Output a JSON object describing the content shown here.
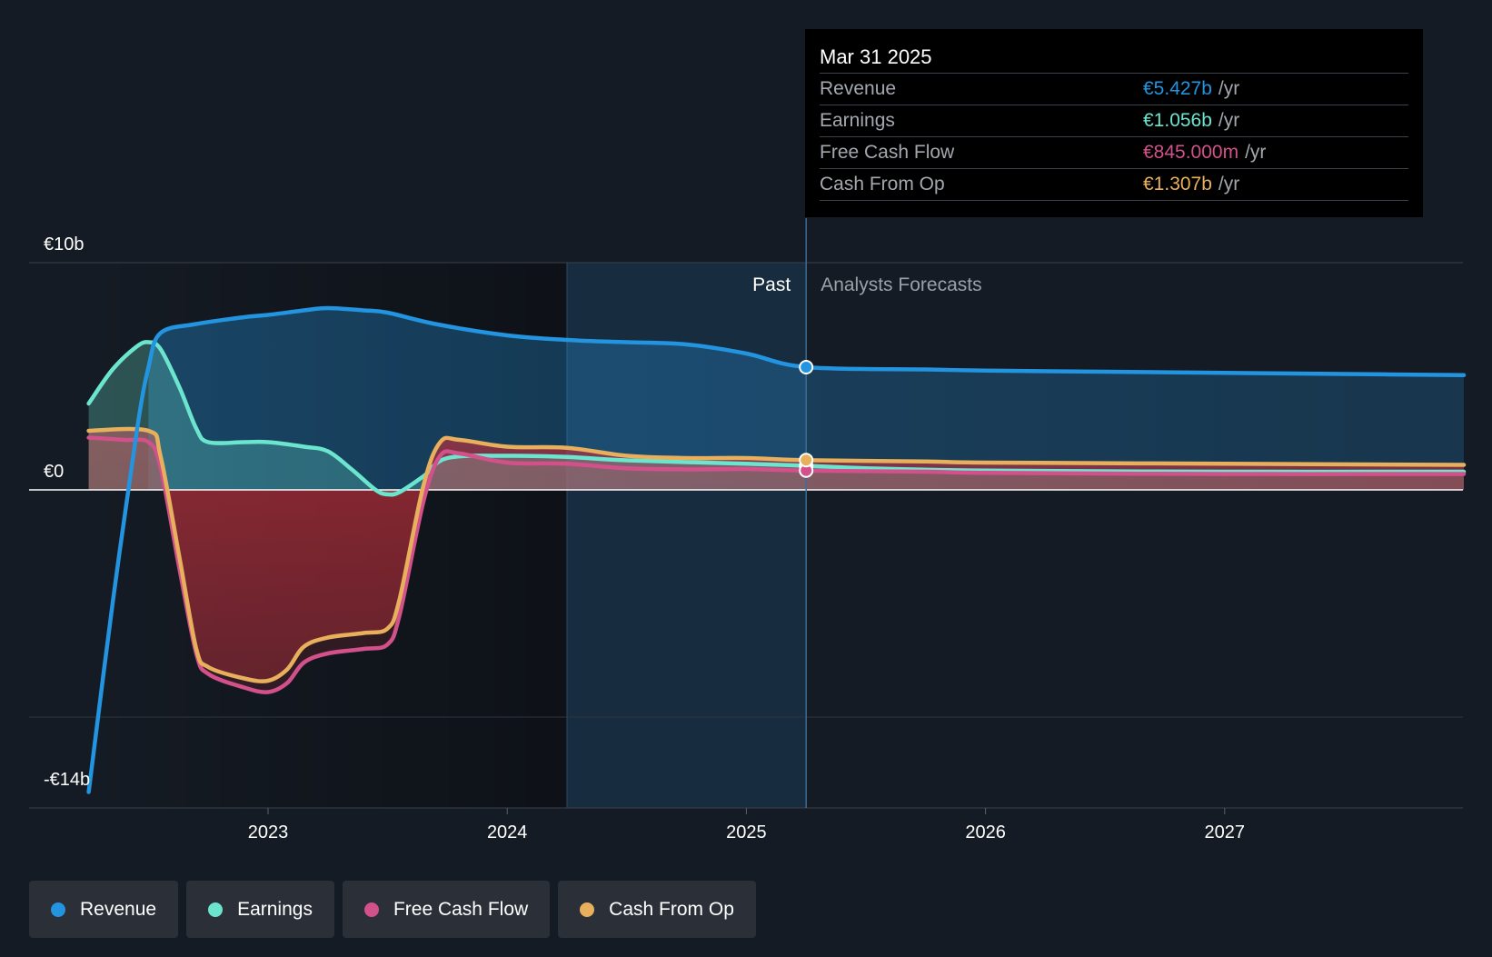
{
  "tooltip": {
    "date": "Mar 31 2025",
    "rows": [
      {
        "label": "Revenue",
        "value": "€5.427b",
        "unit": "/yr",
        "color": "#2394df"
      },
      {
        "label": "Earnings",
        "value": "€1.056b",
        "unit": "/yr",
        "color": "#6ce5cf"
      },
      {
        "label": "Free Cash Flow",
        "value": "€845.000m",
        "unit": "/yr",
        "color": "#d2518a"
      },
      {
        "label": "Cash From Op",
        "value": "€1.307b",
        "unit": "/yr",
        "color": "#e8b05c"
      }
    ]
  },
  "legend": [
    {
      "label": "Revenue",
      "color": "#2394df"
    },
    {
      "label": "Earnings",
      "color": "#6ce5cf"
    },
    {
      "label": "Free Cash Flow",
      "color": "#d2518a"
    },
    {
      "label": "Cash From Op",
      "color": "#e8b05c"
    }
  ],
  "chart_data": {
    "type": "line",
    "y_tick_labels": [
      "€10b",
      "€0",
      "-€14b"
    ],
    "y_ticks": [
      10,
      0,
      -14
    ],
    "ylim": [
      -14,
      10
    ],
    "x_tick_labels": [
      "2023",
      "2024",
      "2025",
      "2026",
      "2027"
    ],
    "x_ticks": [
      2023.0,
      2024.0,
      2025.0,
      2026.0,
      2027.0
    ],
    "xlim": [
      2022.0,
      2028.0
    ],
    "past_label": "Past",
    "forecast_label": "Analysts Forecasts",
    "divider_x": 2025.25,
    "recent_band_start": 2024.25,
    "gridlines": true,
    "series": [
      {
        "name": "Revenue",
        "color": "#2394df",
        "points": [
          [
            2022.25,
            -13.3
          ],
          [
            2022.35,
            -5
          ],
          [
            2022.45,
            2.5
          ],
          [
            2022.5,
            5.4
          ],
          [
            2022.55,
            6.9
          ],
          [
            2022.7,
            7.3
          ],
          [
            2022.9,
            7.6
          ],
          [
            2023.0,
            7.7
          ],
          [
            2023.15,
            7.9
          ],
          [
            2023.25,
            8.0
          ],
          [
            2023.4,
            7.9
          ],
          [
            2023.5,
            7.8
          ],
          [
            2023.7,
            7.3
          ],
          [
            2024.0,
            6.8
          ],
          [
            2024.25,
            6.6
          ],
          [
            2024.5,
            6.5
          ],
          [
            2024.75,
            6.4
          ],
          [
            2025.0,
            6.0
          ],
          [
            2025.25,
            5.4
          ],
          [
            2025.75,
            5.3
          ],
          [
            2026.0,
            5.25
          ],
          [
            2026.5,
            5.2
          ],
          [
            2027.0,
            5.15
          ],
          [
            2027.5,
            5.1
          ],
          [
            2028.0,
            5.05
          ]
        ]
      },
      {
        "name": "Earnings",
        "color": "#6ce5cf",
        "points": [
          [
            2022.25,
            3.8
          ],
          [
            2022.35,
            5.3
          ],
          [
            2022.45,
            6.3
          ],
          [
            2022.5,
            6.5
          ],
          [
            2022.55,
            6.2
          ],
          [
            2022.63,
            4.5
          ],
          [
            2022.7,
            2.7
          ],
          [
            2022.75,
            2.1
          ],
          [
            2022.9,
            2.1
          ],
          [
            2023.0,
            2.1
          ],
          [
            2023.15,
            1.9
          ],
          [
            2023.25,
            1.7
          ],
          [
            2023.35,
            0.9
          ],
          [
            2023.45,
            0.0
          ],
          [
            2023.5,
            -0.2
          ],
          [
            2023.55,
            -0.1
          ],
          [
            2023.65,
            0.6
          ],
          [
            2023.75,
            1.4
          ],
          [
            2024.0,
            1.5
          ],
          [
            2024.25,
            1.45
          ],
          [
            2024.5,
            1.3
          ],
          [
            2025.0,
            1.15
          ],
          [
            2025.25,
            1.06
          ],
          [
            2025.5,
            0.95
          ],
          [
            2026.0,
            0.85
          ],
          [
            2027.0,
            0.8
          ],
          [
            2028.0,
            0.8
          ]
        ]
      },
      {
        "name": "Free Cash Flow",
        "color": "#d2518a",
        "points": [
          [
            2022.25,
            2.3
          ],
          [
            2022.4,
            2.2
          ],
          [
            2022.5,
            2.1
          ],
          [
            2022.55,
            1.0
          ],
          [
            2022.63,
            -3.5
          ],
          [
            2022.7,
            -7.2
          ],
          [
            2022.75,
            -8.1
          ],
          [
            2022.9,
            -8.7
          ],
          [
            2023.0,
            -8.9
          ],
          [
            2023.08,
            -8.5
          ],
          [
            2023.15,
            -7.6
          ],
          [
            2023.25,
            -7.2
          ],
          [
            2023.4,
            -7.0
          ],
          [
            2023.5,
            -6.8
          ],
          [
            2023.55,
            -5.5
          ],
          [
            2023.65,
            -0.5
          ],
          [
            2023.72,
            1.5
          ],
          [
            2023.8,
            1.6
          ],
          [
            2024.0,
            1.2
          ],
          [
            2024.25,
            1.15
          ],
          [
            2024.5,
            0.95
          ],
          [
            2024.75,
            0.9
          ],
          [
            2025.0,
            0.92
          ],
          [
            2025.25,
            0.85
          ],
          [
            2025.75,
            0.8
          ],
          [
            2026.0,
            0.75
          ],
          [
            2027.0,
            0.7
          ],
          [
            2028.0,
            0.7
          ]
        ]
      },
      {
        "name": "Cash From Op",
        "color": "#e8b05c",
        "points": [
          [
            2022.25,
            2.6
          ],
          [
            2022.5,
            2.6
          ],
          [
            2022.55,
            1.5
          ],
          [
            2022.63,
            -3.0
          ],
          [
            2022.7,
            -7.0
          ],
          [
            2022.75,
            -7.8
          ],
          [
            2022.9,
            -8.3
          ],
          [
            2023.0,
            -8.4
          ],
          [
            2023.08,
            -7.9
          ],
          [
            2023.15,
            -6.9
          ],
          [
            2023.25,
            -6.5
          ],
          [
            2023.4,
            -6.3
          ],
          [
            2023.5,
            -6.1
          ],
          [
            2023.55,
            -4.8
          ],
          [
            2023.65,
            0.2
          ],
          [
            2023.72,
            2.1
          ],
          [
            2023.8,
            2.2
          ],
          [
            2024.0,
            1.9
          ],
          [
            2024.25,
            1.85
          ],
          [
            2024.5,
            1.5
          ],
          [
            2024.75,
            1.4
          ],
          [
            2025.0,
            1.4
          ],
          [
            2025.25,
            1.31
          ],
          [
            2025.75,
            1.25
          ],
          [
            2026.0,
            1.2
          ],
          [
            2027.0,
            1.15
          ],
          [
            2028.0,
            1.1
          ]
        ]
      }
    ]
  }
}
